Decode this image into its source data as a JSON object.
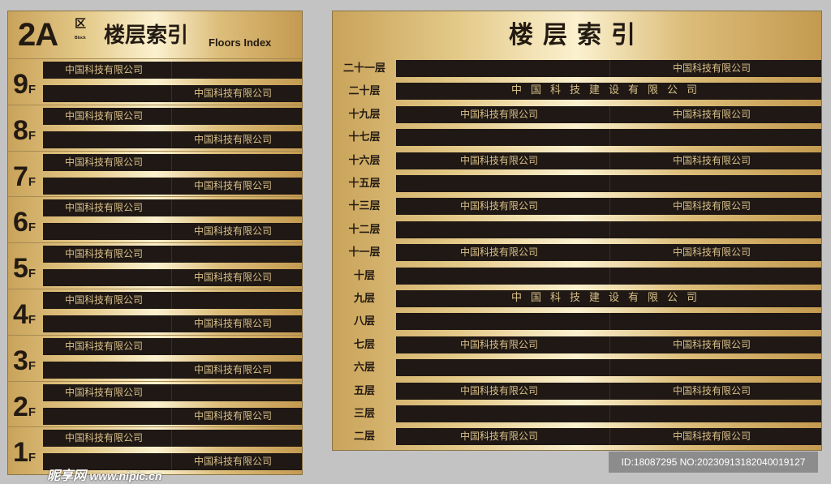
{
  "left": {
    "zone": "2A",
    "zone_char": "区",
    "zone_en": "Block",
    "title": "楼层索引",
    "title_en": "Floors Index",
    "floors": [
      {
        "num": "9",
        "unit": "F",
        "row1": "中国科技有限公司",
        "row2": "中国科技有限公司"
      },
      {
        "num": "8",
        "unit": "F",
        "row1": "中国科技有限公司",
        "row2": "中国科技有限公司"
      },
      {
        "num": "7",
        "unit": "F",
        "row1": "中国科技有限公司",
        "row2": "中国科技有限公司"
      },
      {
        "num": "6",
        "unit": "F",
        "row1": "中国科技有限公司",
        "row2": "中国科技有限公司"
      },
      {
        "num": "5",
        "unit": "F",
        "row1": "中国科技有限公司",
        "row2": "中国科技有限公司"
      },
      {
        "num": "4",
        "unit": "F",
        "row1": "中国科技有限公司",
        "row2": "中国科技有限公司"
      },
      {
        "num": "3",
        "unit": "F",
        "row1": "中国科技有限公司",
        "row2": "中国科技有限公司"
      },
      {
        "num": "2",
        "unit": "F",
        "row1": "中国科技有限公司",
        "row2": "中国科技有限公司"
      },
      {
        "num": "1",
        "unit": "F",
        "row1": "中国科技有限公司",
        "row2": "中国科技有限公司"
      }
    ]
  },
  "right": {
    "title": "楼层索引",
    "rows": [
      {
        "label": "二十一层",
        "left": "",
        "right": "中国科技有限公司"
      },
      {
        "label": "二十层",
        "wide": "中国科技建设有限公司"
      },
      {
        "label": "十九层",
        "left": "中国科技有限公司",
        "right": "中国科技有限公司"
      },
      {
        "label": "十七层",
        "left": "",
        "right": ""
      },
      {
        "label": "十六层",
        "left": "中国科技有限公司",
        "right": "中国科技有限公司"
      },
      {
        "label": "十五层",
        "left": "",
        "right": ""
      },
      {
        "label": "十三层",
        "left": "中国科技有限公司",
        "right": "中国科技有限公司"
      },
      {
        "label": "十二层",
        "left": "",
        "right": ""
      },
      {
        "label": "十一层",
        "left": "中国科技有限公司",
        "right": "中国科技有限公司"
      },
      {
        "label": "十层",
        "left": "",
        "right": ""
      },
      {
        "label": "九层",
        "wide": "中国科技建设有限公司"
      },
      {
        "label": "八层",
        "left": "",
        "right": ""
      },
      {
        "label": "七层",
        "left": "中国科技有限公司",
        "right": "中国科技有限公司"
      },
      {
        "label": "六层",
        "left": "",
        "right": ""
      },
      {
        "label": "五层",
        "left": "中国科技有限公司",
        "right": "中国科技有限公司"
      },
      {
        "label": "三层",
        "left": "",
        "right": ""
      },
      {
        "label": "二层",
        "left": "中国科技有限公司",
        "right": "中国科技有限公司"
      }
    ]
  },
  "watermark": {
    "logo": "昵享网",
    "url": "www.nipic.cn",
    "id": "ID:18087295 NO:20230913182040019127"
  },
  "colors": {
    "gold": "#dcbd7a",
    "bar": "#1f1814",
    "text_gold": "#d9c08a"
  }
}
